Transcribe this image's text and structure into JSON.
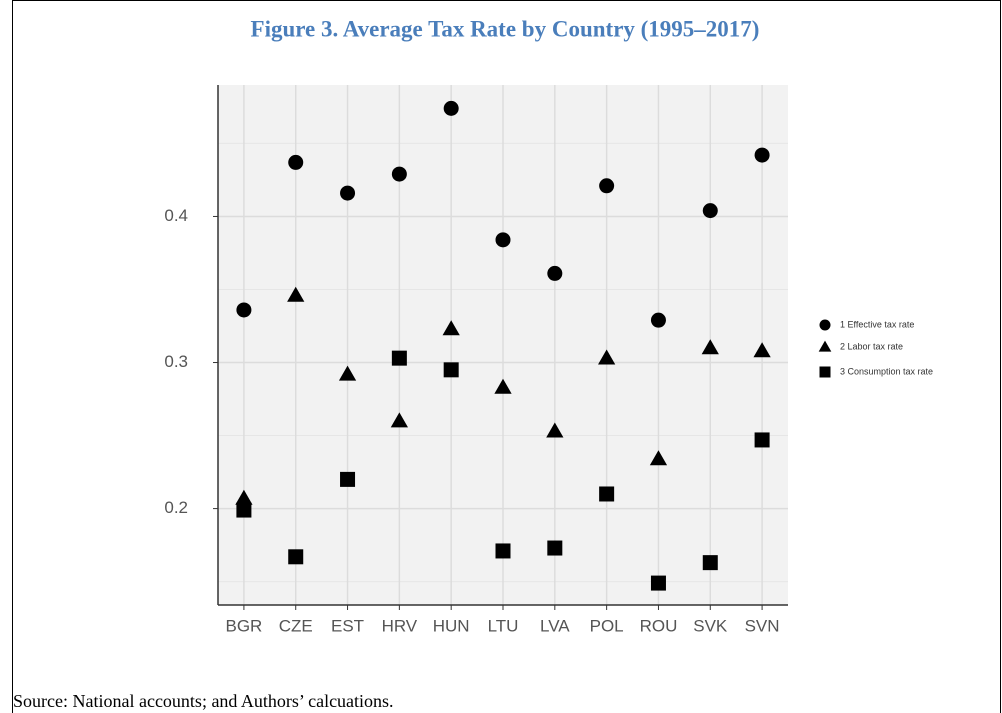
{
  "chart_data": {
    "type": "scatter",
    "title": "Figure 3. Average Tax Rate by Country (1995–2017)",
    "source": "Source: National accounts; and Authors’ calcuations.",
    "categories": [
      "BGR",
      "CZE",
      "EST",
      "HRV",
      "HUN",
      "LTU",
      "LVA",
      "POL",
      "ROU",
      "SVK",
      "SVN"
    ],
    "series": [
      {
        "name": "1 Effective tax rate",
        "color": "#000000",
        "marker": "circle",
        "values": [
          0.336,
          0.437,
          0.416,
          0.429,
          0.474,
          0.384,
          0.361,
          0.421,
          0.329,
          0.404,
          0.442
        ]
      },
      {
        "name": "2 Labor tax rate",
        "color": "#000000",
        "marker": "triangle",
        "values": [
          0.207,
          0.346,
          0.292,
          0.26,
          0.323,
          0.283,
          0.253,
          0.303,
          0.234,
          0.31,
          0.308
        ]
      },
      {
        "name": "3 Consumption tax rate",
        "color": "#000000",
        "marker": "square",
        "values": [
          0.199,
          0.167,
          0.22,
          0.303,
          0.295,
          0.171,
          0.173,
          0.21,
          0.149,
          0.163,
          0.247
        ]
      }
    ],
    "ylim": [
      0.134,
      0.49
    ],
    "yticks": [
      0.2,
      0.3,
      0.4
    ],
    "minor_yticks": [
      0.15,
      0.25,
      0.35,
      0.45
    ],
    "grid": true,
    "legend": "right"
  }
}
